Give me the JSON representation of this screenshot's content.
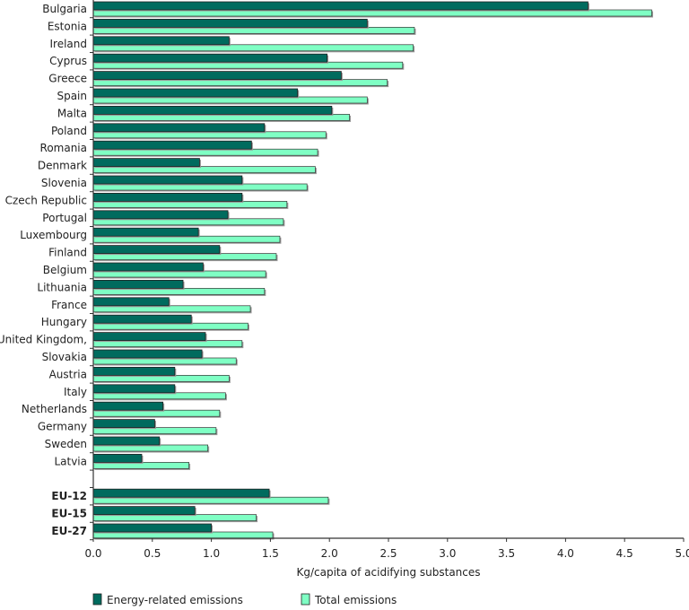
{
  "chart_data": {
    "type": "bar",
    "orientation": "horizontal",
    "categories": [
      "Bulgaria",
      "Estonia",
      "Ireland",
      "Cyprus",
      "Greece",
      "Spain",
      "Malta",
      "Poland",
      "Romania",
      "Denmark",
      "Slovenia",
      "Czech Republic",
      "Portugal",
      "Luxembourg",
      "Finland",
      "Belgium",
      "Lithuania",
      "France",
      "Hungary",
      "United Kingdom,",
      "Slovakia",
      "Austria",
      "Italy",
      "Netherlands",
      "Germany",
      "Sweden",
      "Latvia",
      "",
      "EU-12",
      "EU-15",
      "EU-27"
    ],
    "bold_categories": [
      "EU-12",
      "EU-15",
      "EU-27"
    ],
    "series": [
      {
        "name": "Energy-related emissions",
        "color": "#006b5e",
        "values": [
          4.19,
          2.32,
          1.15,
          1.98,
          2.1,
          1.73,
          2.02,
          1.45,
          1.34,
          0.9,
          1.26,
          1.26,
          1.14,
          0.89,
          1.07,
          0.93,
          0.76,
          0.64,
          0.83,
          0.95,
          0.92,
          0.69,
          0.69,
          0.59,
          0.52,
          0.56,
          0.41,
          null,
          1.49,
          0.86,
          1.0
        ]
      },
      {
        "name": "Total emissions",
        "color": "#7fffc4",
        "values": [
          4.73,
          2.72,
          2.71,
          2.62,
          2.49,
          2.32,
          2.17,
          1.97,
          1.9,
          1.88,
          1.81,
          1.64,
          1.61,
          1.58,
          1.55,
          1.46,
          1.45,
          1.33,
          1.31,
          1.26,
          1.21,
          1.15,
          1.12,
          1.07,
          1.04,
          0.97,
          0.81,
          null,
          1.99,
          1.38,
          1.52
        ]
      }
    ],
    "xlabel": "Kg/capita of acidifying substances",
    "ylabel": "",
    "xlim": [
      0,
      5.0
    ],
    "xticks": [
      "0.0",
      "0.5",
      "1.0",
      "1.5",
      "2.0",
      "2.5",
      "3.0",
      "3.5",
      "4.0",
      "4.5",
      "5.0"
    ],
    "grid": false,
    "legend_position": "bottom"
  }
}
